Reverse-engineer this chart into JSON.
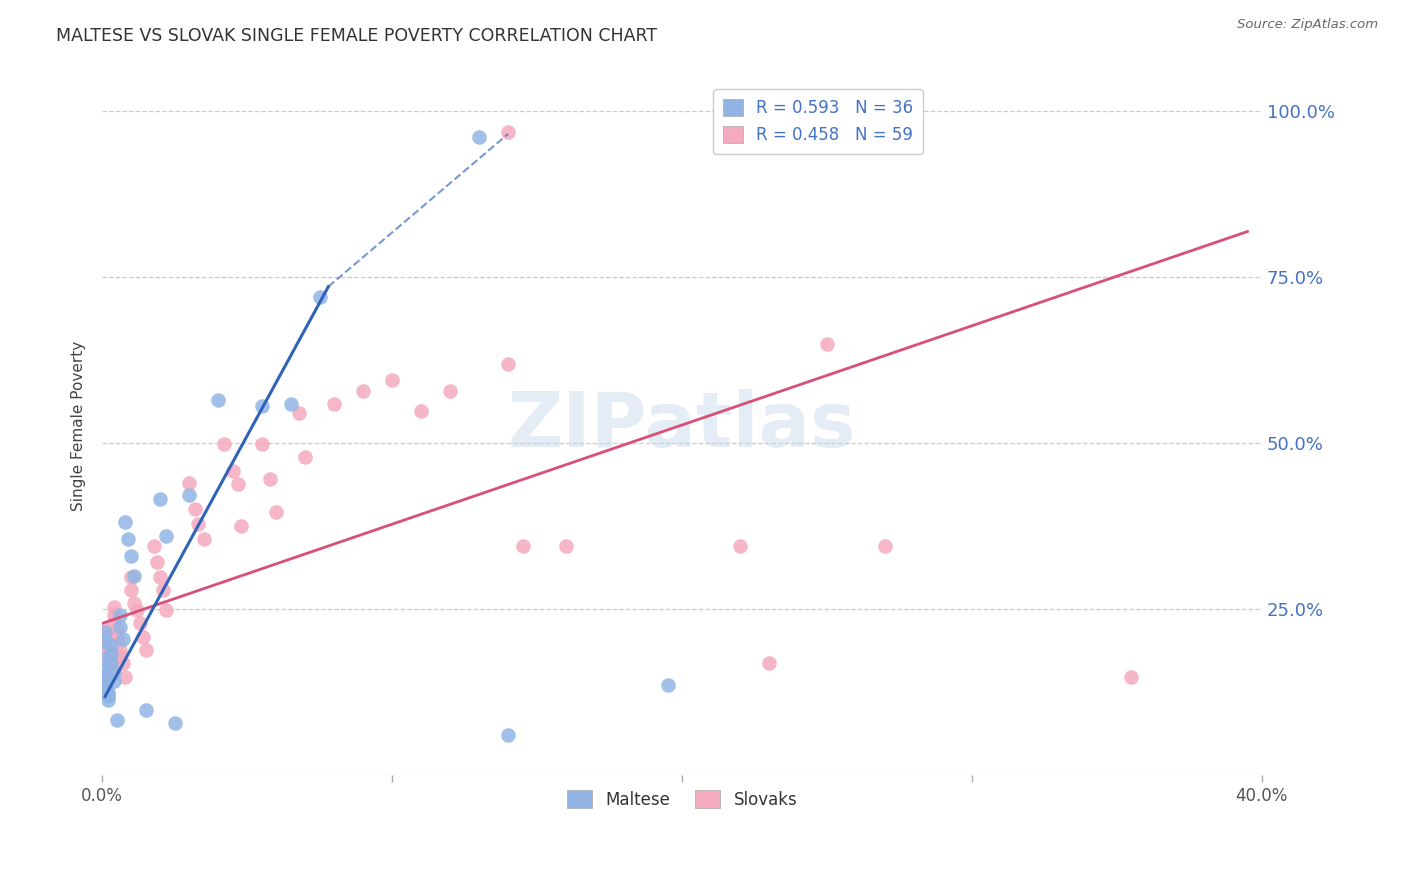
{
  "title": "MALTESE VS SLOVAK SINGLE FEMALE POVERTY CORRELATION CHART",
  "source": "Source: ZipAtlas.com",
  "ylabel": "Single Female Poverty",
  "xlim": [
    0.0,
    0.4
  ],
  "ylim": [
    0.0,
    1.05
  ],
  "xtick_values": [
    0.0,
    0.1,
    0.2,
    0.3,
    0.4
  ],
  "xtick_labels": [
    "0.0%",
    "",
    "",
    "",
    "40.0%"
  ],
  "ytick_values": [
    0.0,
    0.25,
    0.5,
    0.75,
    1.0
  ],
  "ytick_right_labels": [
    "",
    "25.0%",
    "50.0%",
    "75.0%",
    "100.0%"
  ],
  "maltese_R": 0.593,
  "maltese_N": 36,
  "slovak_R": 0.458,
  "slovak_N": 59,
  "maltese_color": "#91b4e5",
  "maltese_line_color": "#2f63b8",
  "slovak_color": "#f4aabf",
  "slovak_line_color": "#d84f78",
  "watermark": "ZIPatlas",
  "maltese_points": [
    [
      0.001,
      0.215
    ],
    [
      0.001,
      0.2
    ],
    [
      0.001,
      0.175
    ],
    [
      0.001,
      0.16
    ],
    [
      0.001,
      0.15
    ],
    [
      0.001,
      0.14
    ],
    [
      0.001,
      0.135
    ],
    [
      0.002,
      0.125
    ],
    [
      0.002,
      0.12
    ],
    [
      0.002,
      0.118
    ],
    [
      0.002,
      0.112
    ],
    [
      0.003,
      0.195
    ],
    [
      0.003,
      0.182
    ],
    [
      0.003,
      0.168
    ],
    [
      0.004,
      0.155
    ],
    [
      0.004,
      0.142
    ],
    [
      0.005,
      0.082
    ],
    [
      0.006,
      0.24
    ],
    [
      0.006,
      0.222
    ],
    [
      0.007,
      0.205
    ],
    [
      0.008,
      0.38
    ],
    [
      0.009,
      0.355
    ],
    [
      0.01,
      0.33
    ],
    [
      0.011,
      0.3
    ],
    [
      0.015,
      0.098
    ],
    [
      0.02,
      0.415
    ],
    [
      0.022,
      0.36
    ],
    [
      0.025,
      0.078
    ],
    [
      0.03,
      0.422
    ],
    [
      0.04,
      0.565
    ],
    [
      0.055,
      0.555
    ],
    [
      0.065,
      0.558
    ],
    [
      0.075,
      0.72
    ],
    [
      0.13,
      0.96
    ],
    [
      0.14,
      0.06
    ],
    [
      0.195,
      0.135
    ]
  ],
  "slovak_points": [
    [
      0.001,
      0.22
    ],
    [
      0.001,
      0.21
    ],
    [
      0.001,
      0.195
    ],
    [
      0.002,
      0.2
    ],
    [
      0.002,
      0.19
    ],
    [
      0.002,
      0.185
    ],
    [
      0.002,
      0.178
    ],
    [
      0.003,
      0.182
    ],
    [
      0.003,
      0.172
    ],
    [
      0.003,
      0.16
    ],
    [
      0.004,
      0.252
    ],
    [
      0.004,
      0.24
    ],
    [
      0.004,
      0.228
    ],
    [
      0.005,
      0.218
    ],
    [
      0.005,
      0.208
    ],
    [
      0.005,
      0.198
    ],
    [
      0.006,
      0.188
    ],
    [
      0.006,
      0.178
    ],
    [
      0.007,
      0.168
    ],
    [
      0.008,
      0.148
    ],
    [
      0.01,
      0.298
    ],
    [
      0.01,
      0.278
    ],
    [
      0.011,
      0.258
    ],
    [
      0.012,
      0.248
    ],
    [
      0.013,
      0.228
    ],
    [
      0.014,
      0.208
    ],
    [
      0.015,
      0.188
    ],
    [
      0.018,
      0.345
    ],
    [
      0.019,
      0.32
    ],
    [
      0.02,
      0.298
    ],
    [
      0.021,
      0.278
    ],
    [
      0.022,
      0.248
    ],
    [
      0.03,
      0.44
    ],
    [
      0.032,
      0.4
    ],
    [
      0.033,
      0.378
    ],
    [
      0.035,
      0.355
    ],
    [
      0.042,
      0.498
    ],
    [
      0.045,
      0.458
    ],
    [
      0.047,
      0.438
    ],
    [
      0.048,
      0.375
    ],
    [
      0.055,
      0.498
    ],
    [
      0.058,
      0.445
    ],
    [
      0.06,
      0.395
    ],
    [
      0.068,
      0.545
    ],
    [
      0.07,
      0.478
    ],
    [
      0.08,
      0.558
    ],
    [
      0.09,
      0.578
    ],
    [
      0.1,
      0.595
    ],
    [
      0.11,
      0.548
    ],
    [
      0.12,
      0.578
    ],
    [
      0.14,
      0.618
    ],
    [
      0.145,
      0.345
    ],
    [
      0.16,
      0.345
    ],
    [
      0.22,
      0.345
    ],
    [
      0.23,
      0.168
    ],
    [
      0.25,
      0.648
    ],
    [
      0.27,
      0.345
    ],
    [
      0.355,
      0.148
    ],
    [
      0.14,
      0.968
    ]
  ],
  "maltese_line_solid": [
    [
      0.001,
      0.118
    ],
    [
      0.078,
      0.735
    ]
  ],
  "maltese_line_dashed": [
    [
      0.078,
      0.735
    ],
    [
      0.14,
      0.965
    ]
  ],
  "slovak_line": [
    [
      0.0,
      0.228
    ],
    [
      0.395,
      0.818
    ]
  ]
}
